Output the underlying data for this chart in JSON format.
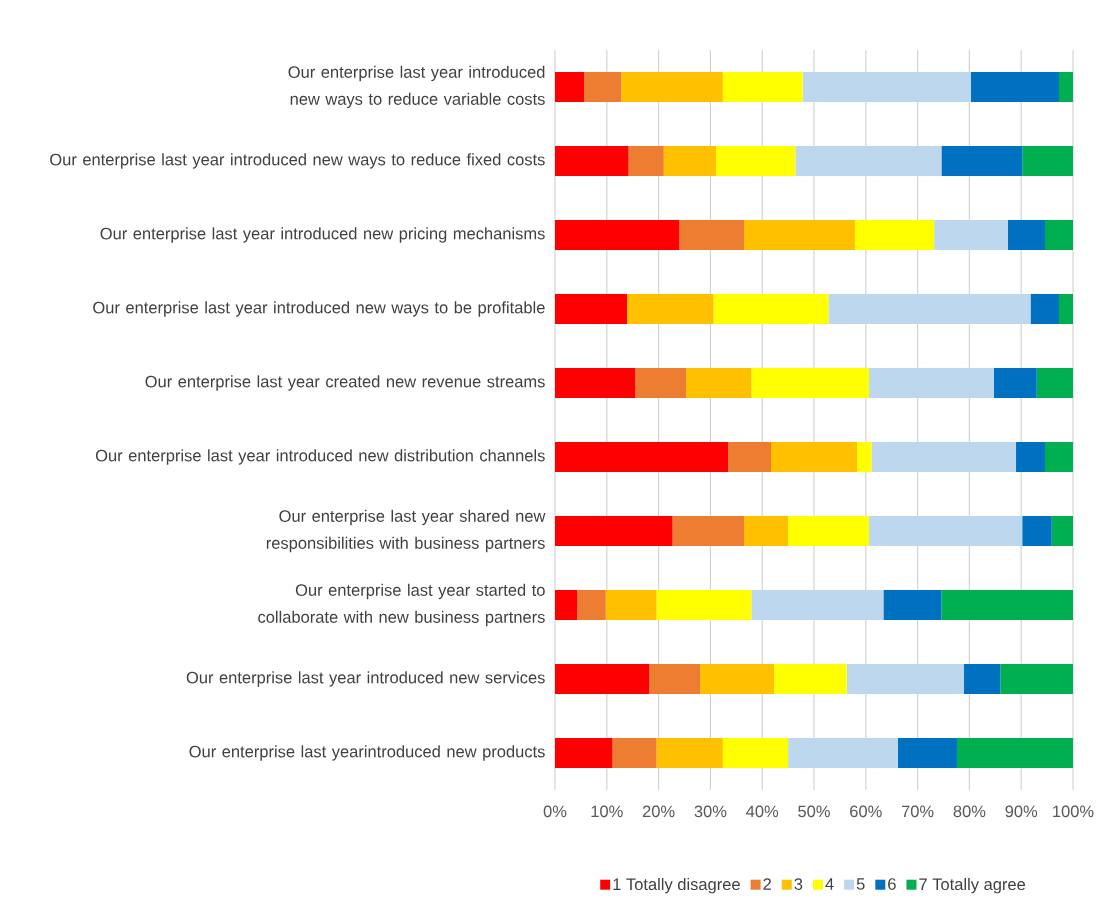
{
  "chart_data": {
    "type": "bar",
    "orientation": "horizontal",
    "stacked": true,
    "categories": [
      "Our enterprise last year introduced new ways to reduce variable costs",
      "Our enterprise last year introduced new ways to reduce fixed costs",
      "Our enterprise last year introduced new pricing mechanisms",
      "Our enterprise last year introduced new ways to be profitable",
      "Our enterprise last year created new revenue streams",
      "Our enterprise last year introduced new distribution channels",
      "Our enterprise last year shared new responsibilities with business partners",
      "Our enterprise last year started to collaborate with new business partners",
      "Our enterprise last year introduced new services",
      "Our enterprise last yearintroduced new products"
    ],
    "series": [
      {
        "name": "1 Totally disagree",
        "color": "#ff0000",
        "values": [
          5.6,
          14.2,
          24.0,
          13.9,
          15.5,
          33.4,
          22.7,
          4.3,
          18.2,
          11.1
        ]
      },
      {
        "name": "2",
        "color": "#ed7d31",
        "values": [
          7.2,
          6.8,
          12.5,
          0,
          9.8,
          8.3,
          13.8,
          5.5,
          9.8,
          8.5
        ]
      },
      {
        "name": "3",
        "color": "#ffc000",
        "values": [
          19.6,
          10.1,
          21.4,
          16.7,
          12.6,
          16.6,
          8.5,
          9.8,
          14.3,
          12.8
        ]
      },
      {
        "name": "4",
        "color": "#ffff00",
        "values": [
          15.4,
          15.3,
          15.3,
          22.2,
          22.7,
          2.8,
          15.6,
          18.3,
          14.0,
          12.6
        ]
      },
      {
        "name": "5",
        "color": "#bdd7ee",
        "values": [
          32.5,
          28.2,
          14.2,
          39.0,
          24.1,
          27.9,
          29.6,
          25.5,
          22.6,
          21.2
        ]
      },
      {
        "name": "6",
        "color": "#0070c0",
        "values": [
          17.0,
          15.6,
          7.2,
          5.5,
          8.3,
          5.6,
          5.7,
          11.2,
          7.1,
          11.4
        ]
      },
      {
        "name": "7 Totally agree",
        "color": "#00b050",
        "values": [
          2.7,
          9.8,
          5.4,
          2.7,
          7.0,
          5.4,
          4.1,
          25.4,
          14.0,
          22.4
        ]
      }
    ],
    "xlim": [
      0,
      100
    ],
    "xticks": [
      {
        "value": 0,
        "label": "0%"
      },
      {
        "value": 10,
        "label": "10%"
      },
      {
        "value": 20,
        "label": "20%"
      },
      {
        "value": 30,
        "label": "30%"
      },
      {
        "value": 40,
        "label": "40%"
      },
      {
        "value": 50,
        "label": "50%"
      },
      {
        "value": 60,
        "label": "60%"
      },
      {
        "value": 70,
        "label": "70%"
      },
      {
        "value": 80,
        "label": "80%"
      },
      {
        "value": 90,
        "label": "90%"
      },
      {
        "value": 100,
        "label": "100%"
      }
    ],
    "grid": "x",
    "legend": "bottom"
  }
}
